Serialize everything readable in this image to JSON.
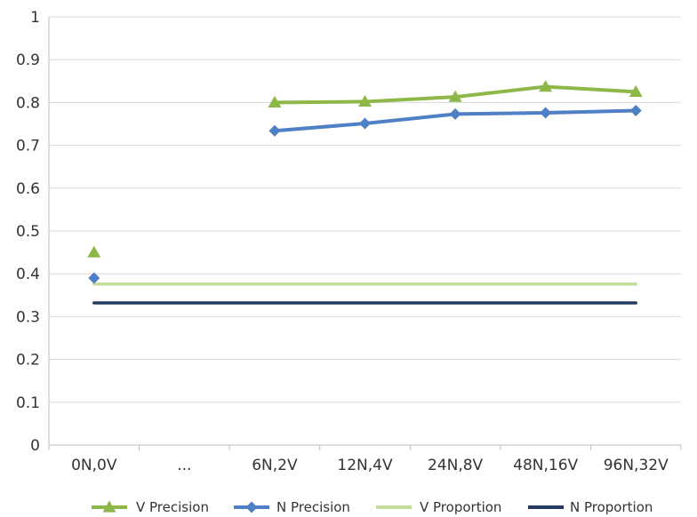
{
  "chart_data": {
    "type": "line",
    "categories": [
      "0N,0V",
      "...",
      "6N,2V",
      "12N,4V",
      "24N,8V",
      "48N,16V",
      "96N,32V"
    ],
    "ylim": [
      0,
      1
    ],
    "y_ticks": [
      "0",
      "0.1",
      "0.2",
      "0.3",
      "0.4",
      "0.5",
      "0.6",
      "0.7",
      "0.8",
      "0.9",
      "1"
    ],
    "grid": "horizontal",
    "legend": "bottom",
    "series": [
      {
        "name": "V Precision",
        "color": "#8DB848",
        "marker": "triangle",
        "segments": [
          [
            0.45
          ],
          [
            null,
            null,
            0.8,
            0.802,
            0.813,
            0.837,
            0.825
          ]
        ]
      },
      {
        "name": "N Precision",
        "color": "#4F7FC4",
        "marker": "diamond",
        "segments": [
          [
            0.39
          ],
          [
            null,
            null,
            0.734,
            0.751,
            0.773,
            0.776,
            0.781
          ]
        ]
      },
      {
        "name": "V Proportion",
        "color": "#C2DE98",
        "marker": "none",
        "values": [
          0.376,
          0.376,
          0.376,
          0.376,
          0.376,
          0.376,
          0.376
        ]
      },
      {
        "name": "N Proportion",
        "color": "#233A63",
        "marker": "none",
        "values": [
          0.332,
          0.332,
          0.332,
          0.332,
          0.332,
          0.332,
          0.332
        ]
      }
    ]
  }
}
